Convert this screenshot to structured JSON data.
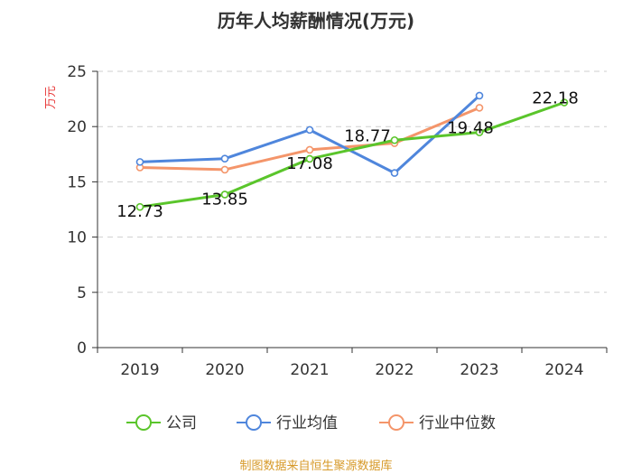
{
  "chart_data": {
    "type": "line",
    "title": "历年人均薪酬情况(万元)",
    "ylabel": "万元",
    "xlabel": "",
    "categories": [
      "2019",
      "2020",
      "2021",
      "2022",
      "2023",
      "2024"
    ],
    "ylim": [
      0,
      25
    ],
    "yticks": [
      0,
      5,
      10,
      15,
      20,
      25
    ],
    "grid": true,
    "legend_position": "bottom",
    "series": [
      {
        "name": "公司",
        "color": "#5ac52b",
        "values": [
          12.73,
          13.85,
          17.08,
          18.77,
          19.48,
          22.18
        ],
        "labels": [
          "12.73",
          "13.85",
          "17.08",
          "18.77",
          "19.48",
          "22.18"
        ]
      },
      {
        "name": "行业均值",
        "color": "#4f86dc",
        "values": [
          16.8,
          17.1,
          19.7,
          15.8,
          22.8,
          null
        ]
      },
      {
        "name": "行业中位数",
        "color": "#f4956a",
        "values": [
          16.3,
          16.1,
          17.9,
          18.5,
          21.7,
          null
        ]
      }
    ],
    "source": "制图数据来自恒生聚源数据库"
  }
}
